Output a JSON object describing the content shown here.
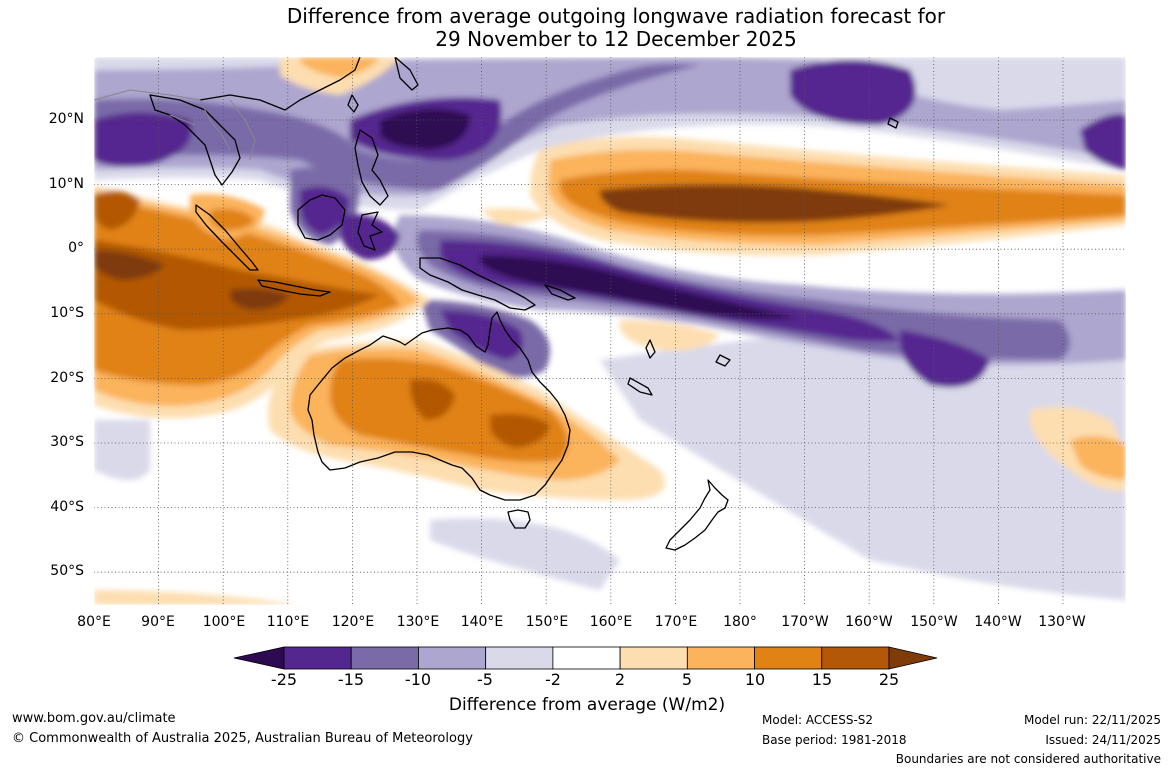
{
  "title": {
    "line1": "Difference from average outgoing longwave radiation forecast for",
    "line2": "29 November to 12 December 2025"
  },
  "map": {
    "longitude_labels": [
      "80°E",
      "90°E",
      "100°E",
      "110°E",
      "120°E",
      "130°E",
      "140°E",
      "150°E",
      "160°E",
      "170°E",
      "180°",
      "170°W",
      "160°W",
      "150°W",
      "140°W",
      "130°W"
    ],
    "latitude_labels": [
      "20°N",
      "10°N",
      "0°",
      "10°S",
      "20°S",
      "30°S",
      "40°S",
      "50°S"
    ]
  },
  "colorbar": {
    "tick_labels": [
      "-25",
      "-15",
      "-10",
      "-5",
      "-2",
      "2",
      "5",
      "10",
      "15",
      "25"
    ],
    "colors": [
      "#2d0a52",
      "#54278f",
      "#7a6aa8",
      "#ada6cf",
      "#d9d9ea",
      "#ffffff",
      "#fddeb0",
      "#fbb35c",
      "#e08214",
      "#b35806",
      "#7f3b08"
    ],
    "label": "Difference from average (W/m2)"
  },
  "footer": {
    "website": "www.bom.gov.au/climate",
    "copyright": "© Commonwealth of Australia 2025, Australian Bureau of Meteorology",
    "model": "Model: ACCESS-S2",
    "base_period": "Base period: 1981-2018",
    "model_run": "Model run: 22/11/2025",
    "issued": "Issued: 24/11/2025",
    "disclaimer": "Boundaries are not considered authoritative"
  }
}
